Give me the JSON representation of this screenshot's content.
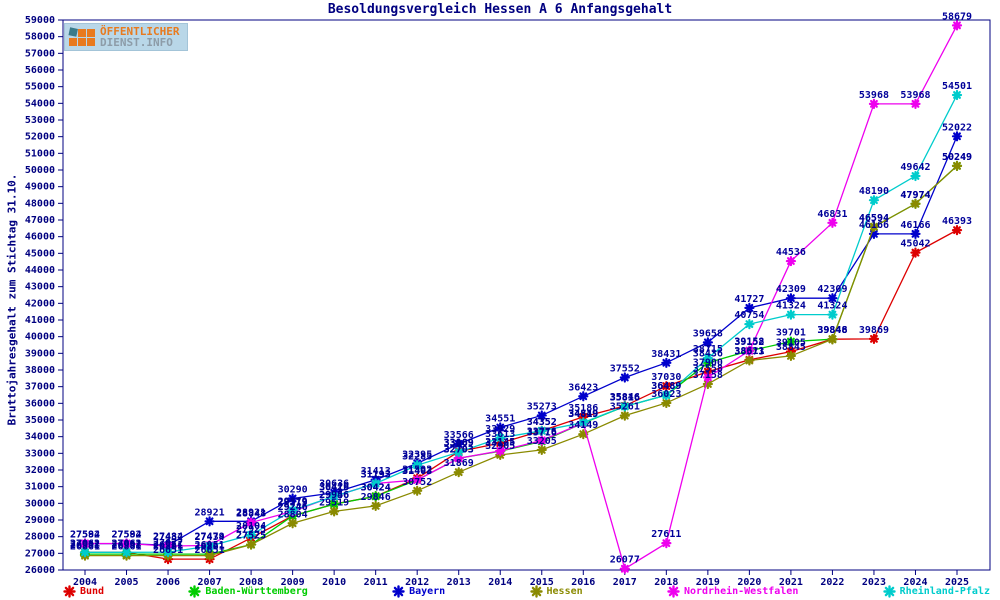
{
  "logo": {
    "line1": "ÖFFENTLICHER",
    "line2": "DIENST.INFO",
    "orange": "#e87a1e",
    "gray": "#8d9ca8",
    "teal": "#3a7b8a",
    "bg": "#b9d7e8"
  },
  "chart_data": {
    "type": "line",
    "title": "Besoldungsvergleich Hessen A 6 Anfangsgehalt",
    "xlabel": "",
    "ylabel": "Bruttojahresgehalt zum Stichtag 31.10.",
    "ylim": [
      26000,
      59000
    ],
    "ytick_step": 1000,
    "grid": false,
    "legend_position": "bottom",
    "axis_color": "#000080",
    "label_color": "#000099",
    "x": [
      2004,
      2005,
      2006,
      2007,
      2008,
      2009,
      2010,
      2011,
      2012,
      2013,
      2014,
      2015,
      2016,
      2017,
      2018,
      2019,
      2020,
      2021,
      2022,
      2023,
      2024,
      2025
    ],
    "series": [
      {
        "name": "Bund",
        "color": "#dd0000",
        "values": [
          27061,
          27061,
          26651,
          26651,
          27925,
          29246,
          29956,
          30424,
          31502,
          33109,
          33613,
          34352,
          35186,
          35846,
          37030,
          37900,
          38611,
          39105,
          39848,
          39869,
          45042,
          46393
        ]
      },
      {
        "name": "Baden-Württemberg",
        "color": "#00cc00",
        "values": [
          26952,
          26952,
          26951,
          26951,
          27525,
          29246,
          29946,
          30424,
          31403,
          32703,
          33125,
          33716,
          34819,
          35816,
          36489,
          38436,
          39152,
          39701,
          39848,
          46594,
          47974,
          50249
        ]
      },
      {
        "name": "Bayern",
        "color": "#0000cc",
        "values": [
          27584,
          27584,
          27484,
          28921,
          28921,
          30290,
          30636,
          31413,
          32395,
          33566,
          34551,
          35273,
          36423,
          37552,
          38431,
          39658,
          41727,
          42309,
          42309,
          46166,
          46166,
          52022
        ]
      },
      {
        "name": "Hessen",
        "color": "#8a8a00",
        "values": [
          26861,
          26861,
          26861,
          26861,
          27525,
          28804,
          29519,
          29846,
          30752,
          31869,
          32905,
          33205,
          34149,
          35261,
          36023,
          37158,
          38573,
          38845,
          39846,
          46594,
          47974,
          50249
        ]
      },
      {
        "name": "Nordrhein-Westfalen",
        "color": "#ee00ee",
        "values": [
          27592,
          27592,
          27432,
          27479,
          28848,
          29519,
          30428,
          31193,
          31403,
          32703,
          33145,
          33776,
          34819,
          26077,
          27611,
          37558,
          39158,
          44536,
          46831,
          53968,
          53968,
          58679
        ]
      },
      {
        "name": "Rheinland-Pfalz",
        "color": "#00cccc",
        "values": [
          27062,
          27062,
          27072,
          27434,
          28104,
          29579,
          30419,
          31193,
          32285,
          33069,
          33929,
          34352,
          34849,
          35816,
          36489,
          38715,
          40754,
          41324,
          41324,
          48190,
          49642,
          54501
        ]
      }
    ]
  }
}
